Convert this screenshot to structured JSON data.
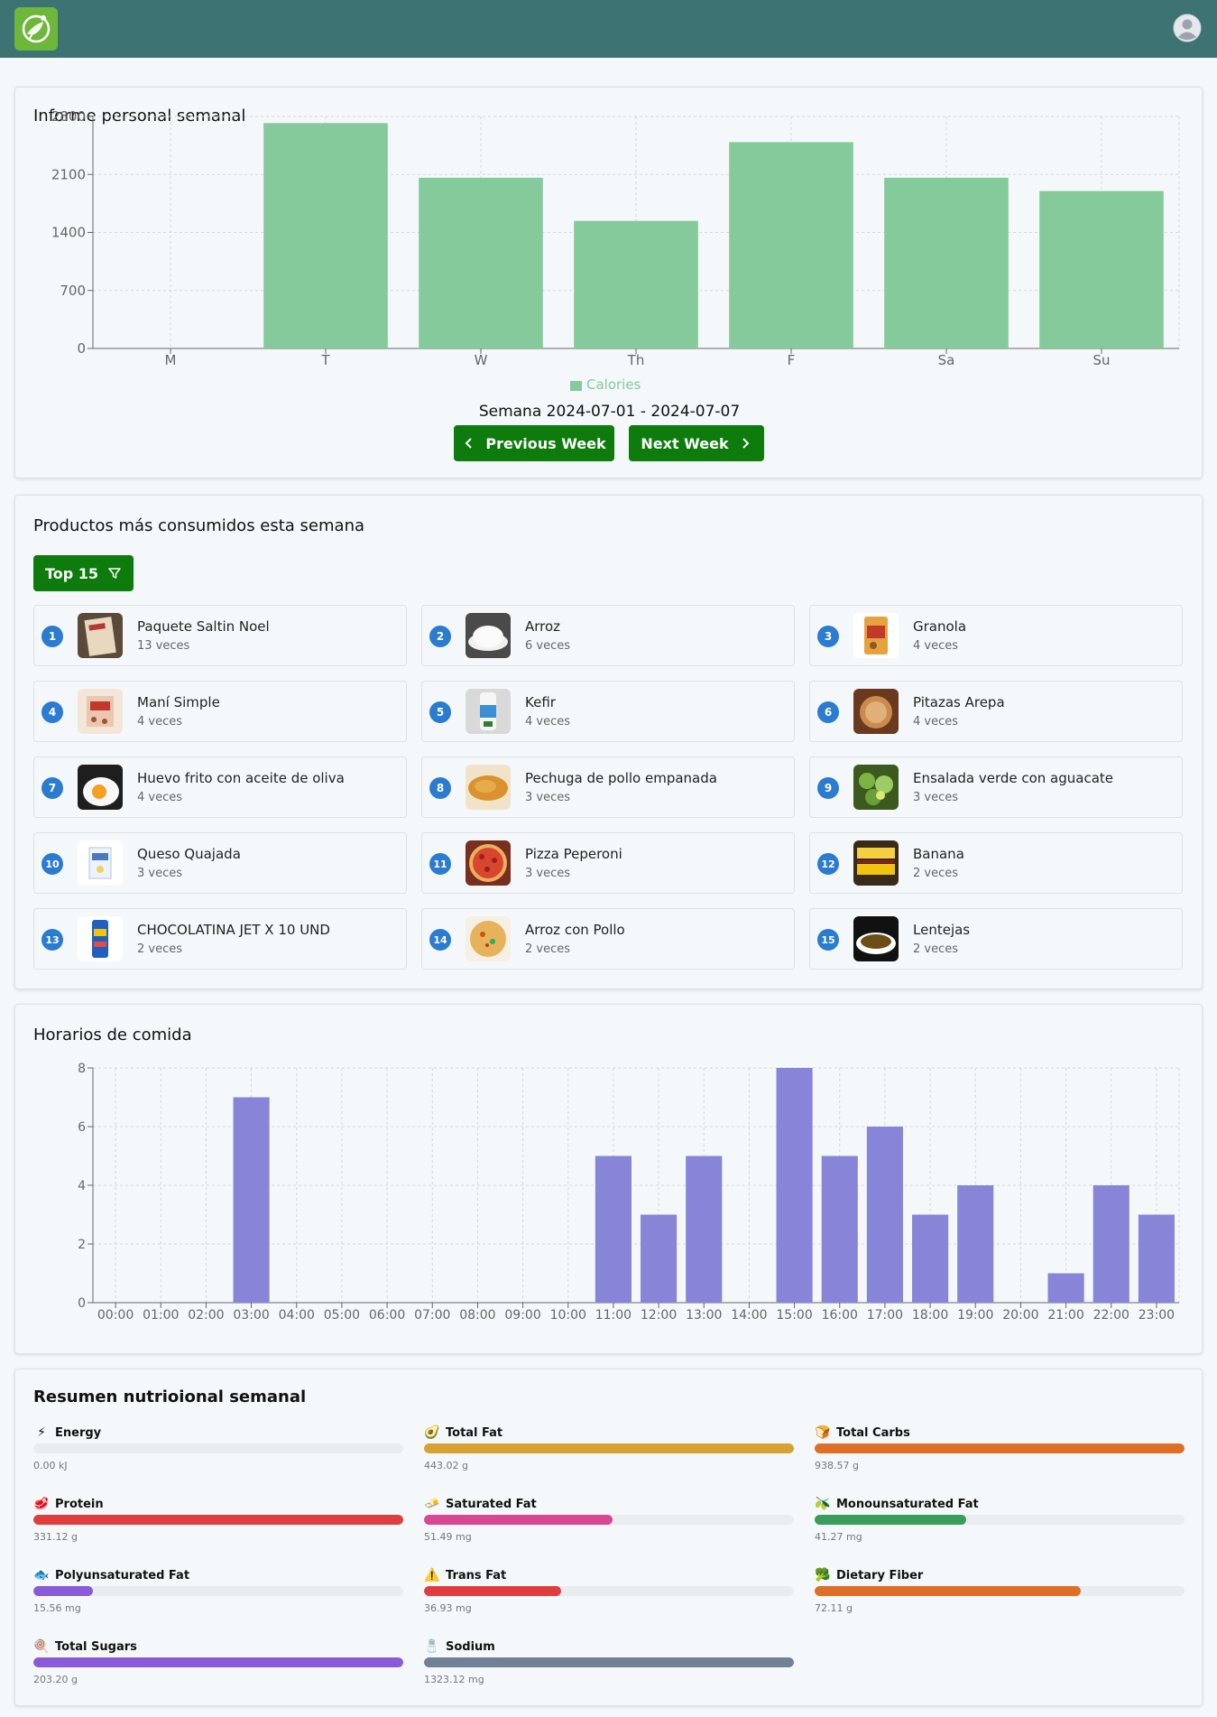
{
  "header": {},
  "weekly_report": {
    "title": "Informe personal semanal",
    "week_label": "Semana 2024-07-01 - 2024-07-07",
    "prev_label": "Previous Week",
    "next_label": "Next Week"
  },
  "chart_data": [
    {
      "type": "bar",
      "categories": [
        "M",
        "T",
        "W",
        "Th",
        "F",
        "Sa",
        "Su"
      ],
      "series": [
        {
          "name": "Calories",
          "values": [
            0,
            2720,
            2060,
            1540,
            2490,
            2060,
            1900
          ],
          "color": "#84ca9b"
        }
      ],
      "yticks": [
        0,
        700,
        1400,
        2100,
        2800
      ],
      "ylim": [
        0,
        2800
      ],
      "grid": true,
      "legend": "bottom"
    },
    {
      "type": "bar",
      "categories": [
        "00:00",
        "01:00",
        "02:00",
        "03:00",
        "04:00",
        "05:00",
        "06:00",
        "07:00",
        "08:00",
        "09:00",
        "10:00",
        "11:00",
        "12:00",
        "13:00",
        "14:00",
        "15:00",
        "16:00",
        "17:00",
        "18:00",
        "19:00",
        "20:00",
        "21:00",
        "22:00",
        "23:00"
      ],
      "series": [
        {
          "values": [
            0,
            0,
            0,
            7,
            0,
            0,
            0,
            0,
            0,
            0,
            0,
            5,
            3,
            5,
            0,
            8,
            5,
            6,
            3,
            4,
            0,
            1,
            4,
            3
          ],
          "color": "#8884d8"
        }
      ],
      "yticks": [
        0,
        2,
        4,
        6,
        8
      ],
      "ylim": [
        0,
        8
      ],
      "grid": true
    }
  ],
  "products": {
    "title": "Productos más consumidos esta semana",
    "filter_label": "Top 15",
    "items": [
      {
        "rank": "1",
        "name": "Paquete Saltin Noel",
        "count": "13 veces",
        "thumb": "crackers"
      },
      {
        "rank": "2",
        "name": "Arroz",
        "count": "6 veces",
        "thumb": "rice"
      },
      {
        "rank": "3",
        "name": "Granola",
        "count": "4 veces",
        "thumb": "granola"
      },
      {
        "rank": "4",
        "name": "Maní Simple",
        "count": "4 veces",
        "thumb": "peanuts"
      },
      {
        "rank": "5",
        "name": "Kefir",
        "count": "4 veces",
        "thumb": "kefir"
      },
      {
        "rank": "6",
        "name": "Pitazas Arepa",
        "count": "4 veces",
        "thumb": "arepa"
      },
      {
        "rank": "7",
        "name": "Huevo frito con aceite de oliva",
        "count": "4 veces",
        "thumb": "egg"
      },
      {
        "rank": "8",
        "name": "Pechuga de pollo empanada",
        "count": "3 veces",
        "thumb": "chicken"
      },
      {
        "rank": "9",
        "name": "Ensalada verde con aguacate",
        "count": "3 veces",
        "thumb": "salad"
      },
      {
        "rank": "10",
        "name": "Queso Quajada",
        "count": "3 veces",
        "thumb": "cheese"
      },
      {
        "rank": "11",
        "name": "Pizza Peperoni",
        "count": "3 veces",
        "thumb": "pizza"
      },
      {
        "rank": "12",
        "name": "Banana",
        "count": "2 veces",
        "thumb": "banana"
      },
      {
        "rank": "13",
        "name": "CHOCOLATINA JET X 10 UND",
        "count": "2 veces",
        "thumb": "chocolate"
      },
      {
        "rank": "14",
        "name": "Arroz con Pollo",
        "count": "2 veces",
        "thumb": "chicken-rice"
      },
      {
        "rank": "15",
        "name": "Lentejas",
        "count": "2 veces",
        "thumb": "lentils"
      }
    ]
  },
  "meal_times": {
    "title": "Horarios de comida"
  },
  "nutrition": {
    "title": "Resumen nutrioional semanal",
    "items": [
      {
        "label": "Energy",
        "value": "0.00 kJ",
        "percent": 0,
        "color": "#9ca3af",
        "emoji": "⚡"
      },
      {
        "label": "Total Fat",
        "value": "443.02 g",
        "percent": 100,
        "color": "#d8a133",
        "emoji": "🥑"
      },
      {
        "label": "Total Carbs",
        "value": "938.57 g",
        "percent": 100,
        "color": "#df6e26",
        "emoji": "🍞"
      },
      {
        "label": "Protein",
        "value": "331.12 g",
        "percent": 100,
        "color": "#e03e3e",
        "emoji": "🥩"
      },
      {
        "label": "Saturated Fat",
        "value": "51.49 mg",
        "percent": 51,
        "color": "#d94691",
        "emoji": "🧈"
      },
      {
        "label": "Monounsaturated Fat",
        "value": "41.27 mg",
        "percent": 41,
        "color": "#3a9d5c",
        "emoji": "🫒"
      },
      {
        "label": "Polyunsaturated Fat",
        "value": "15.56 mg",
        "percent": 16,
        "color": "#8a5bd8",
        "emoji": "🐟"
      },
      {
        "label": "Trans Fat",
        "value": "36.93 mg",
        "percent": 37,
        "color": "#e03e3e",
        "emoji": "⚠️"
      },
      {
        "label": "Dietary Fiber",
        "value": "72.11 g",
        "percent": 72,
        "color": "#df6e26",
        "emoji": "🥦"
      },
      {
        "label": "Total Sugars",
        "value": "203.20 g",
        "percent": 100,
        "color": "#8a5bd8",
        "emoji": "🍭"
      },
      {
        "label": "Sodium",
        "value": "1323.12 mg",
        "percent": 100,
        "color": "#718096",
        "emoji": "🧂"
      }
    ]
  }
}
